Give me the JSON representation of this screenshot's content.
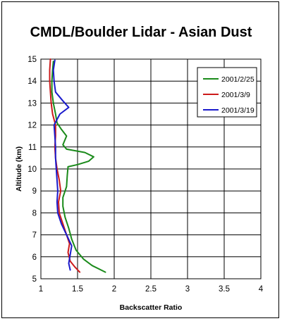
{
  "chart_data": {
    "type": "line",
    "title": "CMDL/Boulder Lidar - Asian Dust",
    "xlabel": "Backscatter Ratio",
    "ylabel": "Altitude (km)",
    "xlim": [
      1,
      4
    ],
    "ylim": [
      5,
      15
    ],
    "xticks": [
      "1",
      "1.5",
      "2",
      "2.5",
      "3",
      "3.5",
      "4"
    ],
    "yticks": [
      "5",
      "6",
      "7",
      "8",
      "9",
      "10",
      "11",
      "12",
      "13",
      "14",
      "15"
    ],
    "grid": true,
    "legend_position": "top-right",
    "series": [
      {
        "name": "2001/2/25",
        "color": "#1a8a1a",
        "points": [
          [
            1.88,
            5.3
          ],
          [
            1.7,
            5.6
          ],
          [
            1.58,
            5.9
          ],
          [
            1.48,
            6.3
          ],
          [
            1.42,
            6.8
          ],
          [
            1.38,
            7.3
          ],
          [
            1.33,
            7.8
          ],
          [
            1.3,
            8.3
          ],
          [
            1.3,
            8.7
          ],
          [
            1.35,
            9.2
          ],
          [
            1.36,
            9.7
          ],
          [
            1.37,
            10.1
          ],
          [
            1.5,
            10.2
          ],
          [
            1.65,
            10.35
          ],
          [
            1.72,
            10.55
          ],
          [
            1.6,
            10.75
          ],
          [
            1.35,
            10.9
          ],
          [
            1.3,
            11.1
          ],
          [
            1.35,
            11.5
          ],
          [
            1.28,
            11.8
          ],
          [
            1.22,
            12.1
          ],
          [
            1.2,
            12.5
          ],
          [
            1.17,
            13
          ],
          [
            1.15,
            13.5
          ],
          [
            1.15,
            14
          ],
          [
            1.16,
            14.5
          ],
          [
            1.17,
            14.9
          ]
        ]
      },
      {
        "name": "2001/3/9",
        "color": "#cc1a1a",
        "points": [
          [
            1.53,
            5.3
          ],
          [
            1.46,
            5.55
          ],
          [
            1.4,
            5.8
          ],
          [
            1.37,
            6.2
          ],
          [
            1.39,
            6.6
          ],
          [
            1.35,
            7
          ],
          [
            1.3,
            7.5
          ],
          [
            1.25,
            8
          ],
          [
            1.24,
            8.5
          ],
          [
            1.27,
            9
          ],
          [
            1.25,
            9.5
          ],
          [
            1.22,
            10
          ],
          [
            1.2,
            10.5
          ],
          [
            1.19,
            11
          ],
          [
            1.2,
            11.5
          ],
          [
            1.2,
            12
          ],
          [
            1.16,
            12.5
          ],
          [
            1.14,
            13
          ],
          [
            1.13,
            13.5
          ],
          [
            1.12,
            14
          ],
          [
            1.12,
            14.5
          ],
          [
            1.13,
            15
          ]
        ]
      },
      {
        "name": "2001/3/19",
        "color": "#1a1acc",
        "points": [
          [
            1.4,
            5.4
          ],
          [
            1.38,
            5.7
          ],
          [
            1.4,
            6.1
          ],
          [
            1.42,
            6.5
          ],
          [
            1.35,
            7
          ],
          [
            1.28,
            7.5
          ],
          [
            1.23,
            8
          ],
          [
            1.22,
            8.5
          ],
          [
            1.23,
            9
          ],
          [
            1.22,
            9.5
          ],
          [
            1.21,
            10
          ],
          [
            1.2,
            10.5
          ],
          [
            1.2,
            11
          ],
          [
            1.19,
            11.5
          ],
          [
            1.18,
            12
          ],
          [
            1.26,
            12.5
          ],
          [
            1.38,
            12.8
          ],
          [
            1.3,
            13.1
          ],
          [
            1.2,
            13.5
          ],
          [
            1.18,
            14
          ],
          [
            1.17,
            14.5
          ],
          [
            1.19,
            14.95
          ]
        ]
      }
    ]
  }
}
